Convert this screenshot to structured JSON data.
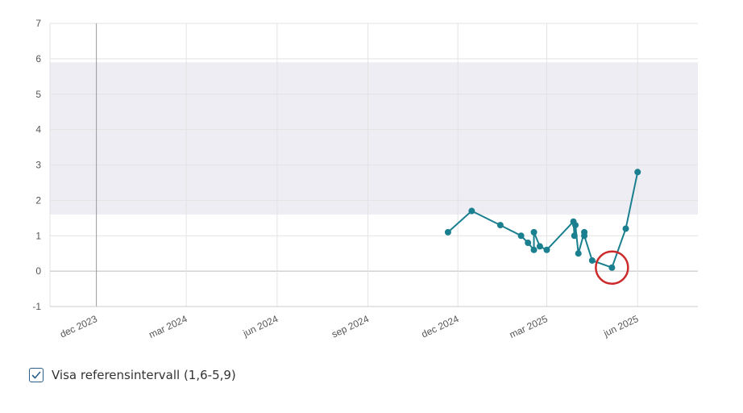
{
  "chart_data": {
    "type": "line",
    "ylim": [
      -1,
      7
    ],
    "y_ticks": [
      "7",
      "6",
      "5",
      "4",
      "3",
      "2",
      "1",
      "0",
      "-1"
    ],
    "xlim": [
      "2023-10-15",
      "2025-08-01"
    ],
    "x_ticks": [
      {
        "date": "2023-12-01",
        "label": "dec 2023"
      },
      {
        "date": "2024-03-01",
        "label": "mar 2024"
      },
      {
        "date": "2024-06-01",
        "label": "jun 2024"
      },
      {
        "date": "2024-09-01",
        "label": "sep 2024"
      },
      {
        "date": "2024-12-01",
        "label": "dec 2024"
      },
      {
        "date": "2025-03-01",
        "label": "mar 2025"
      },
      {
        "date": "2025-06-01",
        "label": "jun 2025"
      }
    ],
    "reference_interval": [
      1.6,
      5.9
    ],
    "series": [
      {
        "color": "#1a7f8e",
        "points": [
          {
            "x": "2024-11-21",
            "y": 1.1
          },
          {
            "x": "2024-12-15",
            "y": 1.7
          },
          {
            "x": "2025-01-13",
            "y": 1.3
          },
          {
            "x": "2025-02-03",
            "y": 1.0
          },
          {
            "x": "2025-02-10",
            "y": 0.8
          },
          {
            "x": "2025-02-16",
            "y": 0.6
          },
          {
            "x": "2025-02-16",
            "y": 1.1
          },
          {
            "x": "2025-02-22",
            "y": 0.7
          },
          {
            "x": "2025-03-01",
            "y": 0.6
          },
          {
            "x": "2025-03-28",
            "y": 1.4
          },
          {
            "x": "2025-03-29",
            "y": 1.0
          },
          {
            "x": "2025-03-30",
            "y": 1.3
          },
          {
            "x": "2025-04-02",
            "y": 0.5
          },
          {
            "x": "2025-04-08",
            "y": 1.1
          },
          {
            "x": "2025-04-08",
            "y": 1.0
          },
          {
            "x": "2025-04-16",
            "y": 0.3
          },
          {
            "x": "2025-05-06",
            "y": 0.1
          },
          {
            "x": "2025-05-20",
            "y": 1.2
          },
          {
            "x": "2025-06-01",
            "y": 2.8
          }
        ]
      }
    ],
    "highlighted_point": {
      "x": "2025-05-06",
      "y": 0.1
    },
    "grid": true
  },
  "colors": {
    "series": "#1a7f8e",
    "reference_band": "#ededf3",
    "highlight": "#cc2a2a",
    "checkbox": "#2a5d8a"
  },
  "legend": {
    "checkbox_checked": true,
    "label": "Visa referensintervall (1,6-5,9)",
    "icon": "check-icon"
  }
}
